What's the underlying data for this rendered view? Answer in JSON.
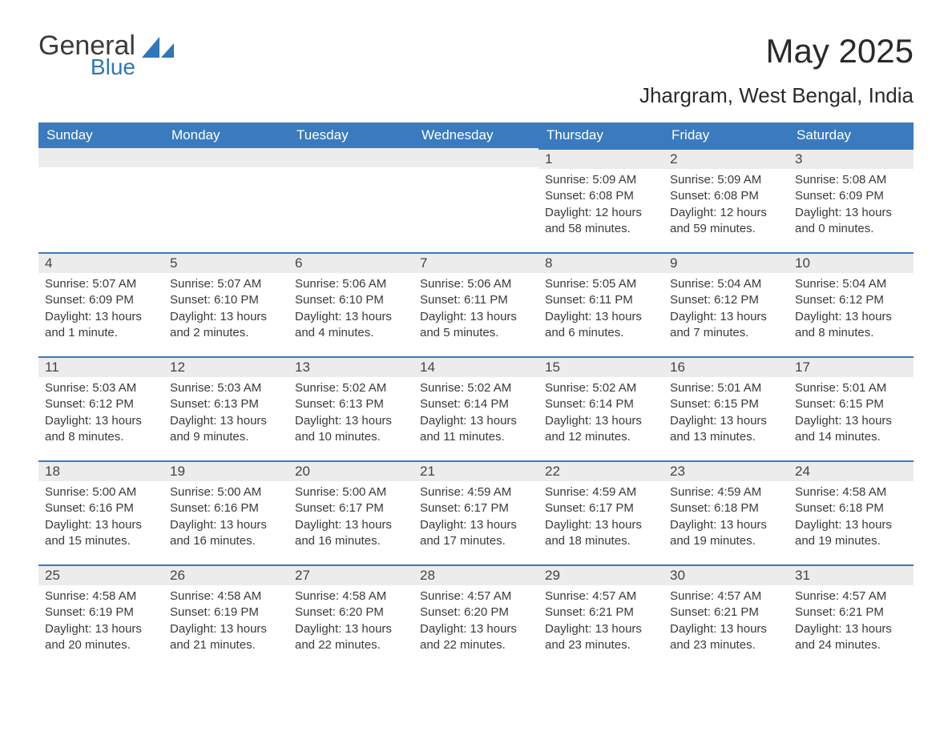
{
  "logo": {
    "general": "General",
    "blue": "Blue",
    "icon_color": "#2f77b8"
  },
  "title": "May 2025",
  "location": "Jhargram, West Bengal, India",
  "colors": {
    "header_bg": "#3a7bbf",
    "header_text": "#ffffff",
    "daybar_bg": "#ececec",
    "daybar_border": "#3a7bbf",
    "body_text": "#3a3a3a",
    "page_bg": "#ffffff"
  },
  "columns": [
    "Sunday",
    "Monday",
    "Tuesday",
    "Wednesday",
    "Thursday",
    "Friday",
    "Saturday"
  ],
  "weeks": [
    [
      null,
      null,
      null,
      null,
      {
        "n": "1",
        "sunrise": "Sunrise: 5:09 AM",
        "sunset": "Sunset: 6:08 PM",
        "day1": "Daylight: 12 hours",
        "day2": "and 58 minutes."
      },
      {
        "n": "2",
        "sunrise": "Sunrise: 5:09 AM",
        "sunset": "Sunset: 6:08 PM",
        "day1": "Daylight: 12 hours",
        "day2": "and 59 minutes."
      },
      {
        "n": "3",
        "sunrise": "Sunrise: 5:08 AM",
        "sunset": "Sunset: 6:09 PM",
        "day1": "Daylight: 13 hours",
        "day2": "and 0 minutes."
      }
    ],
    [
      {
        "n": "4",
        "sunrise": "Sunrise: 5:07 AM",
        "sunset": "Sunset: 6:09 PM",
        "day1": "Daylight: 13 hours",
        "day2": "and 1 minute."
      },
      {
        "n": "5",
        "sunrise": "Sunrise: 5:07 AM",
        "sunset": "Sunset: 6:10 PM",
        "day1": "Daylight: 13 hours",
        "day2": "and 2 minutes."
      },
      {
        "n": "6",
        "sunrise": "Sunrise: 5:06 AM",
        "sunset": "Sunset: 6:10 PM",
        "day1": "Daylight: 13 hours",
        "day2": "and 4 minutes."
      },
      {
        "n": "7",
        "sunrise": "Sunrise: 5:06 AM",
        "sunset": "Sunset: 6:11 PM",
        "day1": "Daylight: 13 hours",
        "day2": "and 5 minutes."
      },
      {
        "n": "8",
        "sunrise": "Sunrise: 5:05 AM",
        "sunset": "Sunset: 6:11 PM",
        "day1": "Daylight: 13 hours",
        "day2": "and 6 minutes."
      },
      {
        "n": "9",
        "sunrise": "Sunrise: 5:04 AM",
        "sunset": "Sunset: 6:12 PM",
        "day1": "Daylight: 13 hours",
        "day2": "and 7 minutes."
      },
      {
        "n": "10",
        "sunrise": "Sunrise: 5:04 AM",
        "sunset": "Sunset: 6:12 PM",
        "day1": "Daylight: 13 hours",
        "day2": "and 8 minutes."
      }
    ],
    [
      {
        "n": "11",
        "sunrise": "Sunrise: 5:03 AM",
        "sunset": "Sunset: 6:12 PM",
        "day1": "Daylight: 13 hours",
        "day2": "and 8 minutes."
      },
      {
        "n": "12",
        "sunrise": "Sunrise: 5:03 AM",
        "sunset": "Sunset: 6:13 PM",
        "day1": "Daylight: 13 hours",
        "day2": "and 9 minutes."
      },
      {
        "n": "13",
        "sunrise": "Sunrise: 5:02 AM",
        "sunset": "Sunset: 6:13 PM",
        "day1": "Daylight: 13 hours",
        "day2": "and 10 minutes."
      },
      {
        "n": "14",
        "sunrise": "Sunrise: 5:02 AM",
        "sunset": "Sunset: 6:14 PM",
        "day1": "Daylight: 13 hours",
        "day2": "and 11 minutes."
      },
      {
        "n": "15",
        "sunrise": "Sunrise: 5:02 AM",
        "sunset": "Sunset: 6:14 PM",
        "day1": "Daylight: 13 hours",
        "day2": "and 12 minutes."
      },
      {
        "n": "16",
        "sunrise": "Sunrise: 5:01 AM",
        "sunset": "Sunset: 6:15 PM",
        "day1": "Daylight: 13 hours",
        "day2": "and 13 minutes."
      },
      {
        "n": "17",
        "sunrise": "Sunrise: 5:01 AM",
        "sunset": "Sunset: 6:15 PM",
        "day1": "Daylight: 13 hours",
        "day2": "and 14 minutes."
      }
    ],
    [
      {
        "n": "18",
        "sunrise": "Sunrise: 5:00 AM",
        "sunset": "Sunset: 6:16 PM",
        "day1": "Daylight: 13 hours",
        "day2": "and 15 minutes."
      },
      {
        "n": "19",
        "sunrise": "Sunrise: 5:00 AM",
        "sunset": "Sunset: 6:16 PM",
        "day1": "Daylight: 13 hours",
        "day2": "and 16 minutes."
      },
      {
        "n": "20",
        "sunrise": "Sunrise: 5:00 AM",
        "sunset": "Sunset: 6:17 PM",
        "day1": "Daylight: 13 hours",
        "day2": "and 16 minutes."
      },
      {
        "n": "21",
        "sunrise": "Sunrise: 4:59 AM",
        "sunset": "Sunset: 6:17 PM",
        "day1": "Daylight: 13 hours",
        "day2": "and 17 minutes."
      },
      {
        "n": "22",
        "sunrise": "Sunrise: 4:59 AM",
        "sunset": "Sunset: 6:17 PM",
        "day1": "Daylight: 13 hours",
        "day2": "and 18 minutes."
      },
      {
        "n": "23",
        "sunrise": "Sunrise: 4:59 AM",
        "sunset": "Sunset: 6:18 PM",
        "day1": "Daylight: 13 hours",
        "day2": "and 19 minutes."
      },
      {
        "n": "24",
        "sunrise": "Sunrise: 4:58 AM",
        "sunset": "Sunset: 6:18 PM",
        "day1": "Daylight: 13 hours",
        "day2": "and 19 minutes."
      }
    ],
    [
      {
        "n": "25",
        "sunrise": "Sunrise: 4:58 AM",
        "sunset": "Sunset: 6:19 PM",
        "day1": "Daylight: 13 hours",
        "day2": "and 20 minutes."
      },
      {
        "n": "26",
        "sunrise": "Sunrise: 4:58 AM",
        "sunset": "Sunset: 6:19 PM",
        "day1": "Daylight: 13 hours",
        "day2": "and 21 minutes."
      },
      {
        "n": "27",
        "sunrise": "Sunrise: 4:58 AM",
        "sunset": "Sunset: 6:20 PM",
        "day1": "Daylight: 13 hours",
        "day2": "and 22 minutes."
      },
      {
        "n": "28",
        "sunrise": "Sunrise: 4:57 AM",
        "sunset": "Sunset: 6:20 PM",
        "day1": "Daylight: 13 hours",
        "day2": "and 22 minutes."
      },
      {
        "n": "29",
        "sunrise": "Sunrise: 4:57 AM",
        "sunset": "Sunset: 6:21 PM",
        "day1": "Daylight: 13 hours",
        "day2": "and 23 minutes."
      },
      {
        "n": "30",
        "sunrise": "Sunrise: 4:57 AM",
        "sunset": "Sunset: 6:21 PM",
        "day1": "Daylight: 13 hours",
        "day2": "and 23 minutes."
      },
      {
        "n": "31",
        "sunrise": "Sunrise: 4:57 AM",
        "sunset": "Sunset: 6:21 PM",
        "day1": "Daylight: 13 hours",
        "day2": "and 24 minutes."
      }
    ]
  ]
}
